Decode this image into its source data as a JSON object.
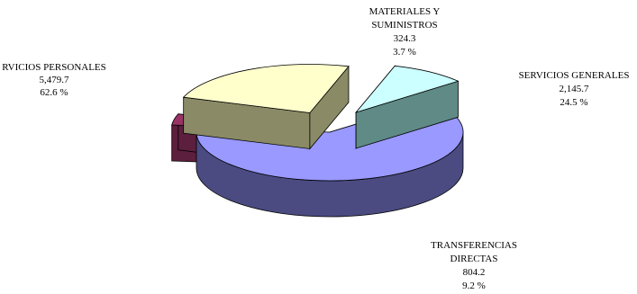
{
  "chart_data": {
    "type": "pie",
    "style": "3d-exploded",
    "grid": false,
    "legend": "none",
    "slices": [
      {
        "label": "SERVICIOS PERSONALES",
        "display_label": "RVICIOS PERSONALES",
        "value": 5479.7,
        "value_text": "5,479.7",
        "percent_text": "62.6 %",
        "top_color": "#9999ff",
        "side_color": "#4b4b82"
      },
      {
        "label_lines": [
          "MATERIALES Y",
          "SUMINISTROS"
        ],
        "value": 324.3,
        "value_text": "324.3",
        "percent_text": "3.7 %",
        "top_color": "#993366",
        "side_color": "#5c1f3d"
      },
      {
        "label": "SERVICIOS GENERALES",
        "value": 2145.7,
        "value_text": "2,145.7",
        "percent_text": "24.5 %",
        "top_color": "#ffffcc",
        "side_color": "#8a8a66"
      },
      {
        "label_lines": [
          "TRANSFERENCIAS",
          "DIRECTAS"
        ],
        "value": 804.2,
        "value_text": "804.2",
        "percent_text": "9.2 %",
        "top_color": "#ccffff",
        "side_color": "#5f8a85"
      }
    ]
  }
}
